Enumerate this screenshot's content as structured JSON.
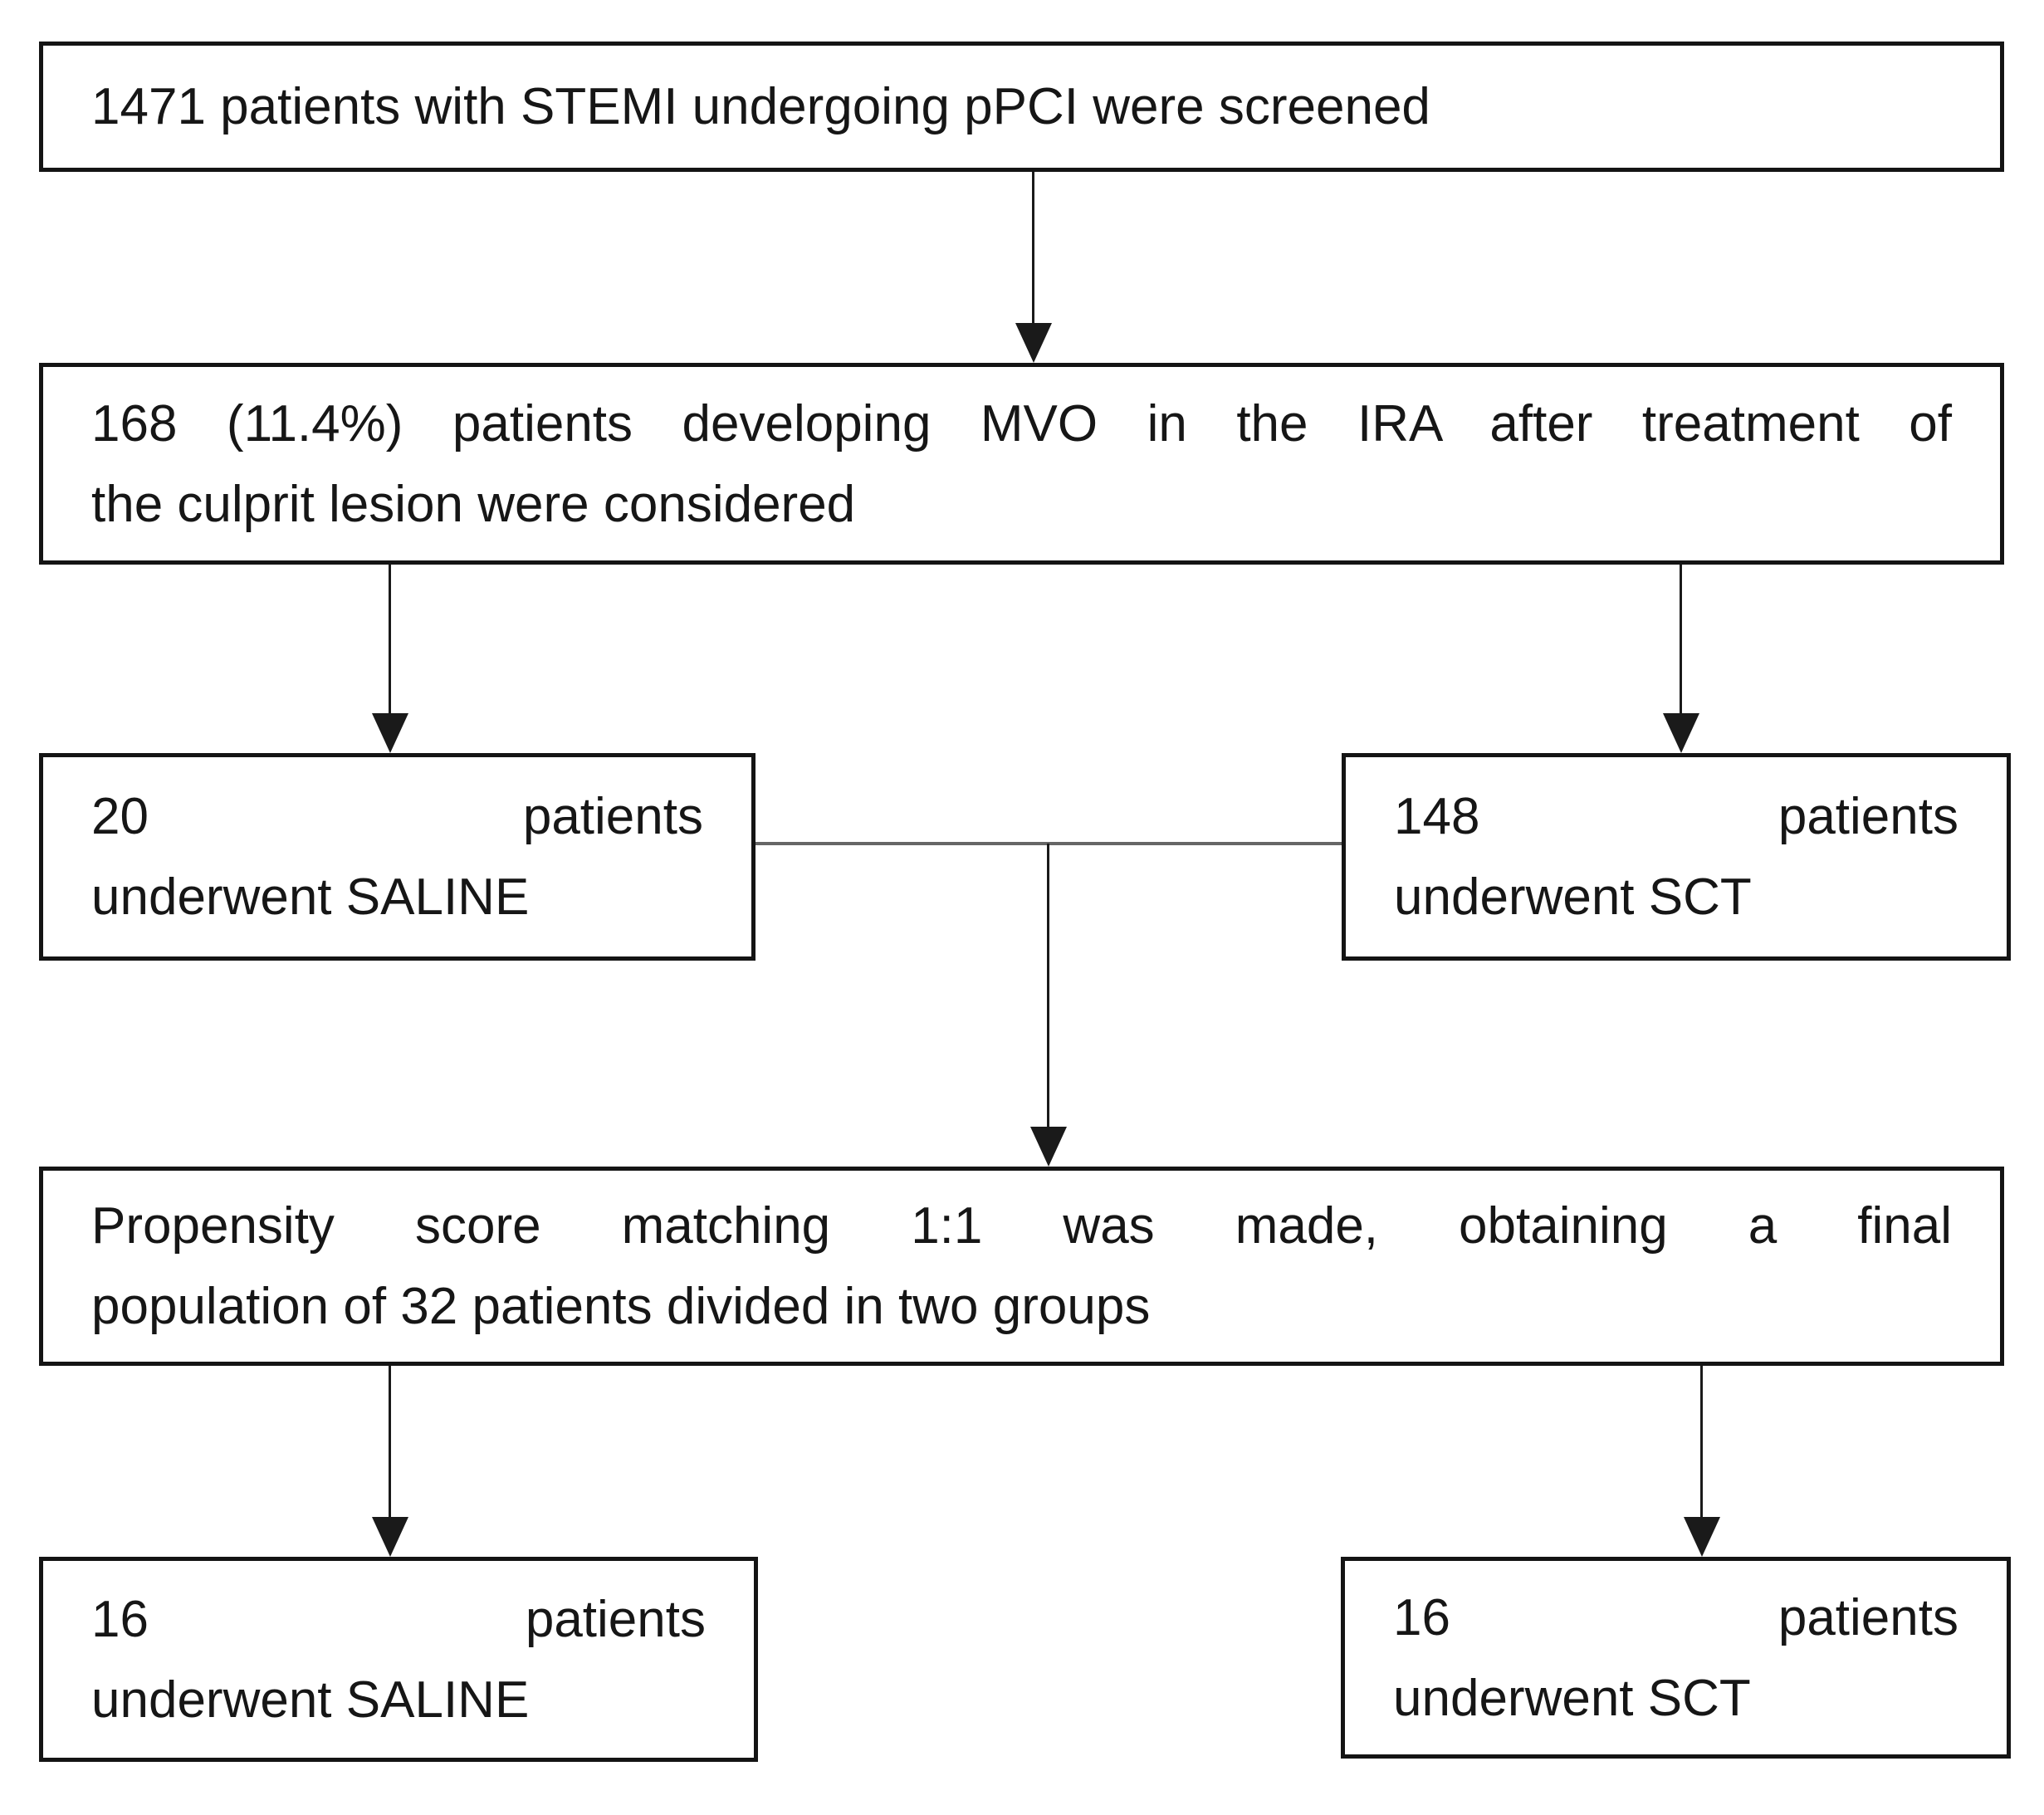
{
  "diagram": {
    "type": "flowchart",
    "colors": {
      "background": "#ffffff",
      "border": "#141414",
      "text": "#161616",
      "arrow": "#1a1a1a",
      "connector": "#666666"
    },
    "nodes": {
      "screened": {
        "line1": "1471 patients with STEMI undergoing pPCI were screened"
      },
      "mvo_considered": {
        "line1": "168 (11.4%) patients developing MVO in the IRA after treatment of",
        "line2": "the culprit lesion were considered"
      },
      "saline_initial": {
        "line1": "20 patients",
        "line2": "underwent SALINE"
      },
      "sct_initial": {
        "line1": "148 patients",
        "line2": "underwent SCT"
      },
      "propensity": {
        "line1": "Propensity score matching 1:1 was made, obtaining a final",
        "line2": "population of 32 patients divided in two groups"
      },
      "saline_matched": {
        "line1": "16 patients",
        "line2": "underwent SALINE"
      },
      "sct_matched": {
        "line1": "16 patients",
        "line2": "underwent SCT"
      }
    },
    "edges": [
      {
        "from": "screened",
        "to": "mvo_considered"
      },
      {
        "from": "mvo_considered",
        "to": "saline_initial"
      },
      {
        "from": "mvo_considered",
        "to": "sct_initial"
      },
      {
        "from": "saline_initial & sct_initial",
        "to": "propensity"
      },
      {
        "from": "propensity",
        "to": "saline_matched"
      },
      {
        "from": "propensity",
        "to": "sct_matched"
      }
    ]
  }
}
